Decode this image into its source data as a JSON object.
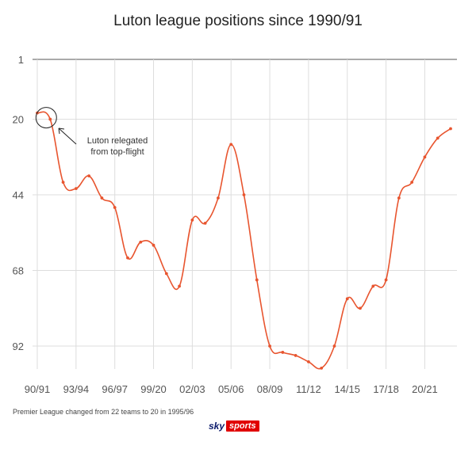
{
  "title": "Luton league positions since 1990/91",
  "footnote": "Premier League changed from 22 teams to 20 in 1995/96",
  "logo": {
    "sky": "sky",
    "sports": "sports"
  },
  "colors": {
    "line": "#e8552f",
    "grid": "#dddddd",
    "axis": "#555555",
    "text": "#555555"
  },
  "chart_data": {
    "type": "line",
    "title": "Luton league positions since 1990/91",
    "xlabel": "",
    "ylabel": "",
    "y_inverted": true,
    "ylim": [
      1,
      99
    ],
    "yticks": [
      1,
      20,
      44,
      68,
      92
    ],
    "x_tick_labels": [
      "90/91",
      "93/94",
      "96/97",
      "99/20",
      "02/03",
      "05/06",
      "08/09",
      "11/12",
      "14/15",
      "17/18",
      "20/21"
    ],
    "grid": true,
    "series": [
      {
        "name": "",
        "x": [
          "90/91",
          "91/92",
          "92/93",
          "93/94",
          "94/95",
          "95/96",
          "96/97",
          "97/98",
          "98/99",
          "99/00",
          "00/01",
          "01/02",
          "02/03",
          "03/04",
          "04/05",
          "05/06",
          "06/07",
          "07/08",
          "08/09",
          "09/10",
          "10/11",
          "11/12",
          "12/13",
          "13/14",
          "14/15",
          "15/16",
          "16/17",
          "17/18",
          "18/19",
          "19/20",
          "20/21",
          "21/22",
          "22/23"
        ],
        "values": [
          18,
          20,
          40,
          42,
          38,
          45,
          48,
          64,
          59,
          60,
          69,
          73,
          52,
          53,
          45,
          28,
          44,
          71,
          92,
          94,
          95,
          97,
          99,
          92,
          77,
          80,
          73,
          71,
          45,
          40,
          32,
          26,
          23
        ]
      }
    ],
    "annotations": [
      {
        "text_lines": [
          "Luton relegated",
          "from top-flight"
        ],
        "target": "91/92"
      }
    ]
  }
}
